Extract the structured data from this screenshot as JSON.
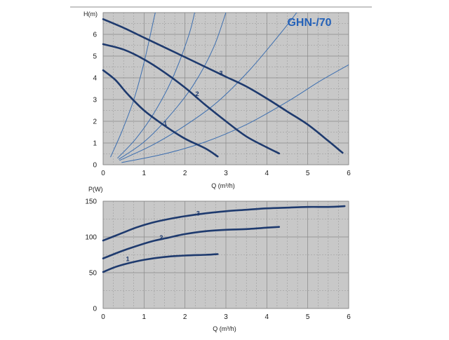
{
  "chart_data": [
    {
      "type": "line",
      "title": "GHN-/70",
      "xlabel": "Q (m³/h)",
      "ylabel": "H(m)",
      "xlim": [
        0,
        6
      ],
      "ylim": [
        0,
        7
      ],
      "xticks": [
        0,
        1,
        2,
        3,
        4,
        5,
        6
      ],
      "yticks": [
        0,
        1,
        2,
        3,
        4,
        5,
        6
      ],
      "grid": true,
      "background": "#c8c8c8",
      "grid_color": "#888888",
      "curve_color": "#1e3a6e",
      "system_curve_color": "#3d6fb0",
      "series": [
        {
          "name": "1",
          "label_at": [
            1.52,
            1.75
          ],
          "points": [
            [
              0,
              4.35
            ],
            [
              0.3,
              3.9
            ],
            [
              0.6,
              3.25
            ],
            [
              1.0,
              2.5
            ],
            [
              1.5,
              1.8
            ],
            [
              2.0,
              1.2
            ],
            [
              2.5,
              0.75
            ],
            [
              2.8,
              0.38
            ]
          ]
        },
        {
          "name": "2",
          "label_at": [
            2.3,
            3.1
          ],
          "points": [
            [
              0,
              5.55
            ],
            [
              0.5,
              5.3
            ],
            [
              1.0,
              4.85
            ],
            [
              1.5,
              4.25
            ],
            [
              2.0,
              3.55
            ],
            [
              2.5,
              2.75
            ],
            [
              3.0,
              2.0
            ],
            [
              3.5,
              1.3
            ],
            [
              4.0,
              0.8
            ],
            [
              4.3,
              0.52
            ]
          ]
        },
        {
          "name": "3",
          "label_at": [
            2.88,
            4.05
          ],
          "points": [
            [
              0,
              6.7
            ],
            [
              0.5,
              6.3
            ],
            [
              1.0,
              5.85
            ],
            [
              1.5,
              5.4
            ],
            [
              2.0,
              4.95
            ],
            [
              2.5,
              4.5
            ],
            [
              3.0,
              4.05
            ],
            [
              3.5,
              3.6
            ],
            [
              4.0,
              3.05
            ],
            [
              4.5,
              2.45
            ],
            [
              5.0,
              1.85
            ],
            [
              5.5,
              1.1
            ],
            [
              5.85,
              0.55
            ]
          ]
        }
      ],
      "system_curves": [
        [
          [
            0.18,
            0.35
          ],
          [
            0.45,
            1.5
          ],
          [
            0.75,
            3.0
          ],
          [
            1.0,
            4.7
          ],
          [
            1.25,
            6.8
          ],
          [
            1.32,
            7.3
          ]
        ],
        [
          [
            0.35,
            0.3
          ],
          [
            0.8,
            1.2
          ],
          [
            1.25,
            2.4
          ],
          [
            1.7,
            4.0
          ],
          [
            2.1,
            6.0
          ],
          [
            2.27,
            7.3
          ]
        ],
        [
          [
            0.38,
            0.25
          ],
          [
            1.0,
            1.05
          ],
          [
            1.6,
            2.2
          ],
          [
            2.2,
            3.65
          ],
          [
            2.7,
            5.4
          ],
          [
            3.05,
            7.3
          ]
        ],
        [
          [
            0.4,
            0.2
          ],
          [
            1.2,
            0.9
          ],
          [
            2.0,
            1.8
          ],
          [
            2.8,
            2.9
          ],
          [
            3.6,
            4.4
          ],
          [
            4.4,
            6.2
          ],
          [
            4.85,
            7.3
          ]
        ],
        [
          [
            0.45,
            0.1
          ],
          [
            1.5,
            0.5
          ],
          [
            2.5,
            1.05
          ],
          [
            3.5,
            1.85
          ],
          [
            4.5,
            2.9
          ],
          [
            5.3,
            3.85
          ],
          [
            6.0,
            4.6
          ]
        ]
      ]
    },
    {
      "type": "line",
      "title": "",
      "xlabel": "Q (m³/h)",
      "ylabel": "P(W)",
      "xlim": [
        0,
        6
      ],
      "ylim": [
        0,
        150
      ],
      "xticks": [
        0,
        1,
        2,
        3,
        4,
        5,
        6
      ],
      "yticks": [
        0,
        50,
        100,
        150
      ],
      "grid": true,
      "background": "#c8c8c8",
      "grid_color": "#888888",
      "curve_color": "#1e3a6e",
      "series": [
        {
          "name": "1",
          "label_at": [
            0.6,
            64
          ],
          "points": [
            [
              0,
              51
            ],
            [
              0.3,
              58
            ],
            [
              0.6,
              63
            ],
            [
              1.0,
              68
            ],
            [
              1.5,
              72
            ],
            [
              2.0,
              74
            ],
            [
              2.5,
              75
            ],
            [
              2.8,
              76
            ]
          ]
        },
        {
          "name": "2",
          "label_at": [
            1.42,
            94
          ],
          "points": [
            [
              0,
              70
            ],
            [
              0.4,
              79
            ],
            [
              0.8,
              87
            ],
            [
              1.2,
              94
            ],
            [
              1.6,
              99
            ],
            [
              2.0,
              104
            ],
            [
              2.5,
              108
            ],
            [
              3.0,
              110
            ],
            [
              3.5,
              111
            ],
            [
              4.0,
              113
            ],
            [
              4.3,
              114
            ]
          ]
        },
        {
          "name": "3",
          "label_at": [
            2.32,
            128
          ],
          "points": [
            [
              0,
              95
            ],
            [
              0.4,
              104
            ],
            [
              0.8,
              113
            ],
            [
              1.2,
              120
            ],
            [
              1.6,
              125
            ],
            [
              2.0,
              129
            ],
            [
              2.5,
              133
            ],
            [
              3.0,
              136
            ],
            [
              3.5,
              138
            ],
            [
              4.0,
              140
            ],
            [
              4.5,
              141
            ],
            [
              5.0,
              142
            ],
            [
              5.5,
              142
            ],
            [
              5.9,
              143
            ]
          ]
        }
      ]
    }
  ]
}
